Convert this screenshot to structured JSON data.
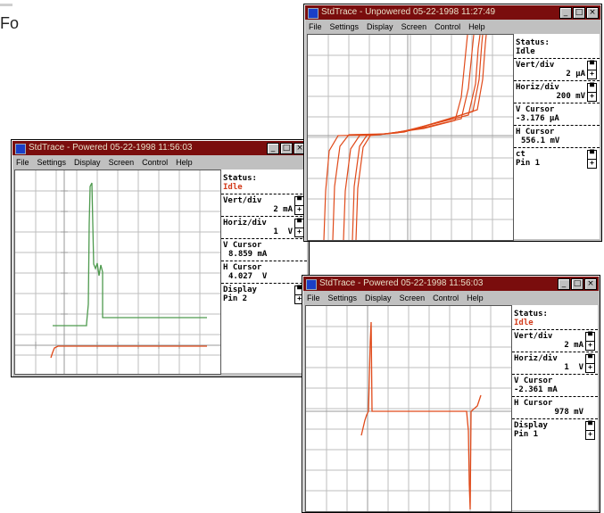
{
  "page_fragment": {
    "text": "Fo"
  },
  "windows": [
    {
      "title": "StdTrace - Powered 05-22-1998 11:56:03",
      "menu": [
        "File",
        "Settings",
        "Display",
        "Screen",
        "Control",
        "Help"
      ],
      "status_label": "Status:",
      "status_value": "Idle",
      "vert_label": "Vert/div",
      "vert_value": "2 mA",
      "horiz_label": "Horiz/div",
      "horiz_value": "1  V",
      "vcursor_label": "V Cursor",
      "vcursor_value": "8.859 mA",
      "hcursor_label": "H Cursor",
      "hcursor_value": "4.027  V",
      "mode_label": "Display",
      "pin_label": "Pin 2",
      "trace_colors": [
        "#4e9a4e",
        "#e04a1a"
      ]
    },
    {
      "title": "StdTrace - Unpowered 05-22-1998 11:27:49",
      "menu": [
        "File",
        "Settings",
        "Display",
        "Screen",
        "Control",
        "Help"
      ],
      "status_label": "Status:",
      "status_value": "Idle",
      "vert_label": "Vert/div",
      "vert_value": "2 µA",
      "horiz_label": "Horiz/div",
      "horiz_value": "200 mV",
      "vcursor_label": "V Cursor",
      "vcursor_value": "-3.176 µA",
      "hcursor_label": "H Cursor",
      "hcursor_value": "556.1 mV",
      "mode_label": "ct",
      "pin_label": "Pin 1",
      "trace_colors": [
        "#e04a1a"
      ]
    },
    {
      "title": "StdTrace - Powered 05-22-1998 11:56:03",
      "menu": [
        "File",
        "Settings",
        "Display",
        "Screen",
        "Control",
        "Help"
      ],
      "status_label": "Status:",
      "status_value": "Idle",
      "vert_label": "Vert/div",
      "vert_value": "2 mA",
      "horiz_label": "Horiz/div",
      "horiz_value": "1  V",
      "vcursor_label": "V Cursor",
      "vcursor_value": "-2.361 mA",
      "hcursor_label": "H Cursor",
      "hcursor_value": "978 mV",
      "mode_label": "Display",
      "pin_label": "Pin 1",
      "trace_colors": [
        "#e04a1a"
      ]
    }
  ],
  "controls": {
    "min_glyph": "_",
    "max_glyph": "□",
    "close_glyph": "×",
    "spin_up": "▀",
    "spin_down": "+"
  },
  "colors": {
    "titlebar": "#7a0d0d",
    "status_idle": "#d23a1a",
    "grid": "#bdbdbd",
    "trace_red": "#e04a1a",
    "trace_green": "#4e9a4e"
  }
}
